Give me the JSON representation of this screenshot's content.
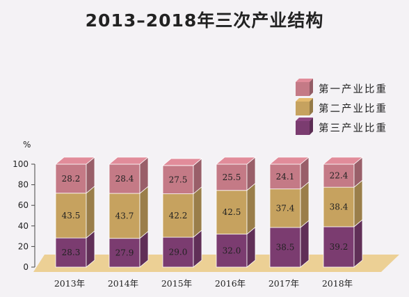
{
  "title": "2013–2018年三次产业结构",
  "colors": {
    "primary": "#c47a86",
    "secondary": "#c6a25f",
    "tertiary": "#7b3c70",
    "floor": "#ecd095",
    "axis": "#444444"
  },
  "chart_data": {
    "type": "bar",
    "stacked": true,
    "title": "2013–2018年三次产业结构",
    "ylabel": "%",
    "ylim": [
      0,
      100
    ],
    "yticks": [
      0,
      20,
      40,
      60,
      80,
      100
    ],
    "categories": [
      "2013年",
      "2014年",
      "2015年",
      "2016年",
      "2017年",
      "2018年"
    ],
    "series": [
      {
        "name": "第三产业比重",
        "values": [
          28.3,
          27.9,
          29.0,
          32.0,
          38.5,
          39.2
        ],
        "labels": [
          "28.3",
          "27.9",
          "29.0",
          "32.0",
          "38.5",
          "39.2"
        ]
      },
      {
        "name": "第二产业比重",
        "values": [
          43.5,
          43.7,
          42.2,
          42.5,
          37.4,
          38.4
        ],
        "labels": [
          "43.5",
          "43.7",
          "42.2",
          "42.5",
          "37.4",
          "38.4"
        ]
      },
      {
        "name": "第一产业比重",
        "values": [
          28.2,
          28.4,
          27.5,
          25.5,
          24.1,
          22.4
        ],
        "labels": [
          "28.2",
          "28.4",
          "27.5",
          "25.5",
          "24.1",
          "22.4"
        ]
      }
    ],
    "legend": {
      "placement": "top-right",
      "items": [
        "第一产业比重",
        "第二产业比重",
        "第三产业比重"
      ]
    }
  }
}
